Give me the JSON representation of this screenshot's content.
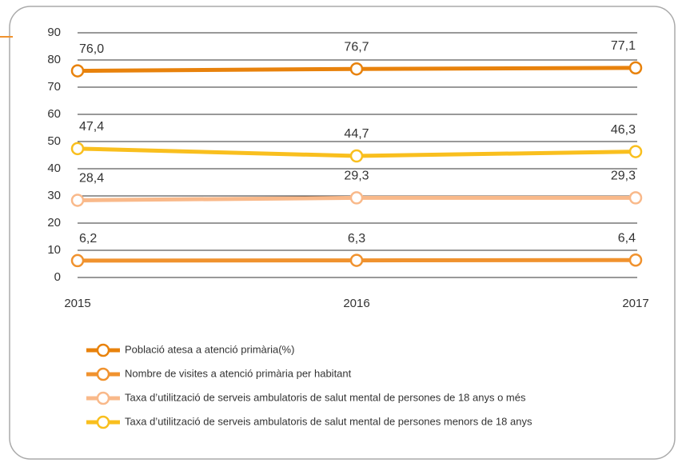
{
  "chart_data": {
    "type": "line",
    "categories": [
      "2015",
      "2016",
      "2017"
    ],
    "ylim": [
      0,
      90
    ],
    "yticks": [
      0,
      10,
      20,
      30,
      40,
      50,
      60,
      70,
      80,
      90
    ],
    "grid": true,
    "series": [
      {
        "name": "Població atesa a atenció primària(%)",
        "color": "#e8820c",
        "values": [
          76.0,
          76.7,
          77.1
        ],
        "value_labels": [
          "76,0",
          "76,7",
          "77,1"
        ]
      },
      {
        "name": "Nombre de visites a atenció primària per habitant",
        "color": "#f0922e",
        "values": [
          6.2,
          6.3,
          6.4
        ],
        "value_labels": [
          "6,2",
          "6,3",
          "6,4"
        ]
      },
      {
        "name": "Taxa d’utilització de serveis ambulatoris de salut mental de persones de 18 anys o més",
        "color": "#f9b98a",
        "values": [
          28.4,
          29.3,
          29.3
        ],
        "value_labels": [
          "28,4",
          "29,3",
          "29,3"
        ]
      },
      {
        "name": "Taxa d’utilització de serveis ambulatoris de salut mental de persones menors de 18 anys",
        "color": "#f9bf1e",
        "values": [
          47.4,
          44.7,
          46.3
        ],
        "value_labels": [
          "47,4",
          "44,7",
          "46,3"
        ]
      }
    ]
  }
}
